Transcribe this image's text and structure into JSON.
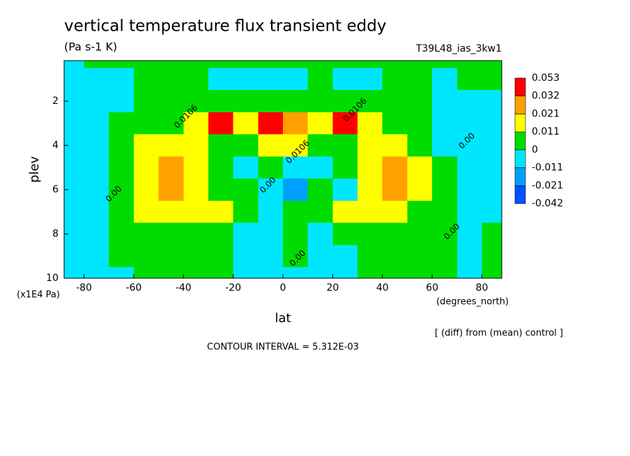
{
  "chart_data": {
    "type": "contour",
    "title": "vertical temperature flux transient eddy",
    "units": "(Pa s-1 K)",
    "run_label": "T39L48_ias_3kw1",
    "x_label": "lat",
    "x_units": "(degrees_north)",
    "y_label": "plev",
    "y_units": "(x1E4 Pa)",
    "diff_note": "[ (diff) from (mean) control ]",
    "contour_interval": "CONTOUR INTERVAL = 5.312E-03",
    "xlim": [
      -88,
      88
    ],
    "ylim": [
      10,
      0.17
    ],
    "xticks": [
      -80,
      -60,
      -40,
      -20,
      0,
      20,
      40,
      60,
      80
    ],
    "yticks": [
      2,
      4,
      6,
      8,
      10
    ],
    "x": [
      -85,
      -75,
      -65,
      -55,
      -45,
      -35,
      -25,
      -15,
      -5,
      5,
      15,
      25,
      35,
      45,
      55,
      65,
      75,
      85
    ],
    "y": [
      0,
      1,
      2,
      3,
      4,
      5,
      6,
      7,
      8,
      9,
      10
    ],
    "z": [
      [
        -0.005,
        0.005,
        0.005,
        0.005,
        0.005,
        0.005,
        0.005,
        0.005,
        0.005,
        0.005,
        0.005,
        0.005,
        0.005,
        0.005,
        0.005,
        0.005,
        0.005,
        0.005
      ],
      [
        -0.005,
        -0.005,
        -0.005,
        0.005,
        0.005,
        0.005,
        -0.005,
        -0.005,
        -0.005,
        -0.005,
        0.005,
        -0.005,
        -0.005,
        0.005,
        0.005,
        -0.005,
        0.005,
        0.005
      ],
      [
        -0.005,
        -0.005,
        -0.005,
        0.005,
        0.005,
        0.005,
        0.005,
        0.005,
        0.005,
        0.005,
        0.005,
        0.005,
        0.005,
        0.005,
        0.005,
        -0.005,
        -0.005,
        -0.005
      ],
      [
        -0.005,
        -0.005,
        0.005,
        0.005,
        0.005,
        0.015,
        0.04,
        0.015,
        0.04,
        0.026,
        0.015,
        0.04,
        0.015,
        0.005,
        0.005,
        -0.005,
        -0.005,
        -0.005
      ],
      [
        -0.005,
        -0.005,
        0.005,
        0.015,
        0.015,
        0.015,
        0.005,
        0.005,
        0.015,
        0.015,
        0.005,
        0.005,
        0.015,
        0.015,
        0.005,
        -0.005,
        -0.005,
        -0.005
      ],
      [
        -0.005,
        -0.005,
        0.005,
        0.015,
        0.026,
        0.015,
        0.005,
        -0.005,
        0.005,
        -0.005,
        -0.005,
        0.005,
        0.015,
        0.026,
        0.015,
        0.005,
        -0.005,
        -0.005
      ],
      [
        -0.005,
        -0.005,
        0.005,
        0.015,
        0.026,
        0.015,
        0.005,
        0.005,
        -0.005,
        -0.015,
        0.005,
        -0.005,
        0.015,
        0.026,
        0.015,
        0.005,
        -0.005,
        -0.005
      ],
      [
        -0.005,
        -0.005,
        0.005,
        0.015,
        0.015,
        0.015,
        0.015,
        0.005,
        -0.005,
        0.005,
        0.005,
        0.015,
        0.015,
        0.015,
        0.005,
        0.005,
        -0.005,
        -0.005
      ],
      [
        -0.005,
        -0.005,
        0.005,
        0.005,
        0.005,
        0.005,
        0.005,
        -0.005,
        -0.005,
        0.005,
        -0.005,
        0.005,
        0.005,
        0.005,
        0.005,
        0.005,
        -0.005,
        0.005
      ],
      [
        -0.005,
        -0.005,
        0.005,
        0.005,
        0.005,
        0.005,
        0.005,
        -0.005,
        -0.005,
        0.005,
        -0.005,
        -0.005,
        0.005,
        0.005,
        0.005,
        0.005,
        -0.005,
        0.005
      ],
      [
        -0.005,
        -0.005,
        -0.005,
        0.005,
        0.005,
        0.005,
        0.005,
        -0.005,
        -0.005,
        -0.005,
        -0.005,
        -0.005,
        0.005,
        0.005,
        0.005,
        0.005,
        -0.005,
        0.005
      ]
    ],
    "levels": [
      -0.042,
      -0.021,
      -0.011,
      0,
      0.011,
      0.021,
      0.032,
      0.053
    ],
    "colors": [
      "#0050ff",
      "#00a0ff",
      "#00e6ff",
      "#00dc00",
      "#ffff00",
      "#ffa000",
      "#ff0000"
    ],
    "contour_labels": [
      {
        "text": "0.0106",
        "lat": -39,
        "plev": 2.7
      },
      {
        "text": "0.0106",
        "lat": 6,
        "plev": 4.3
      },
      {
        "text": "0.0106",
        "lat": 29,
        "plev": 2.4
      },
      {
        "text": "0.00",
        "lat": 74,
        "plev": 3.8
      },
      {
        "text": "0.00",
        "lat": -68,
        "plev": 6.2
      },
      {
        "text": "0.00",
        "lat": -6,
        "plev": 5.8
      },
      {
        "text": "0.00",
        "lat": 68,
        "plev": 7.9
      },
      {
        "text": "0.00",
        "lat": 6,
        "plev": 9.1
      }
    ]
  }
}
